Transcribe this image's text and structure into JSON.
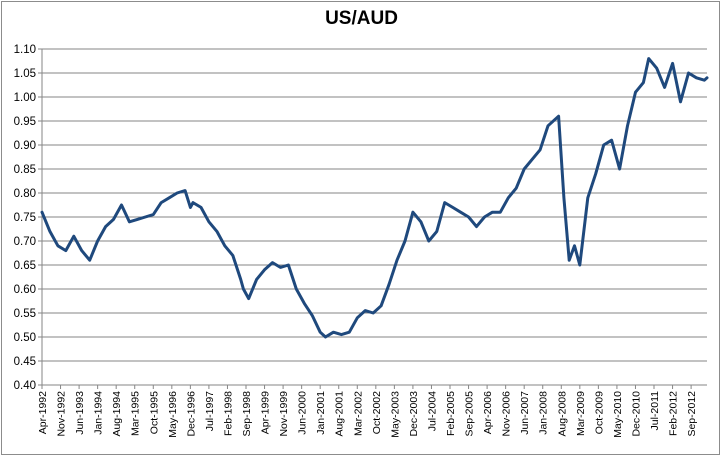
{
  "chart_data": {
    "type": "line",
    "title": "US/AUD",
    "xlabel": "",
    "ylabel": "",
    "ylim": [
      0.4,
      1.1
    ],
    "y_ticks": [
      "0.40",
      "0.45",
      "0.50",
      "0.55",
      "0.60",
      "0.65",
      "0.70",
      "0.75",
      "0.80",
      "0.85",
      "0.90",
      "0.95",
      "1.00",
      "1.05",
      "1.10"
    ],
    "x_range": [
      "1992-04",
      "2013-03"
    ],
    "x_ticks": [
      "Apr-1992",
      "Nov-1992",
      "Jun-1993",
      "Jan-1994",
      "Aug-1994",
      "Mar-1995",
      "Oct-1995",
      "May-1996",
      "Dec-1996",
      "Jul-1997",
      "Feb-1998",
      "Sep-1998",
      "Apr-1999",
      "Nov-1999",
      "Jun-2000",
      "Jan-2001",
      "Aug-2001",
      "Mar-2002",
      "Oct-2002",
      "May-2003",
      "Dec-2003",
      "Jul-2004",
      "Feb-2005",
      "Sep-2005",
      "Apr-2006",
      "Nov-2006",
      "Jun-2007",
      "Jan-2008",
      "Aug-2008",
      "Mar-2009",
      "Oct-2009",
      "May-2010",
      "Dec-2010",
      "Jul-2011",
      "Feb-2012",
      "Sep-2012"
    ],
    "grid": true,
    "legend": "none",
    "line_color": "#1f497d",
    "series": [
      {
        "x": [
          "1992-04",
          "1992-07",
          "1992-10",
          "1993-01",
          "1993-04",
          "1993-07",
          "1993-10",
          "1994-01",
          "1994-04",
          "1994-07",
          "1994-10",
          "1995-01",
          "1995-04",
          "1995-07",
          "1995-10",
          "1996-01",
          "1996-04",
          "1996-07",
          "1996-10",
          "1996-12",
          "1997-01",
          "1997-04",
          "1997-07",
          "1997-10",
          "1998-01",
          "1998-04",
          "1998-07",
          "1998-08",
          "1998-10",
          "1999-01",
          "1999-04",
          "1999-07",
          "1999-10",
          "2000-01",
          "2000-04",
          "2000-07",
          "2000-10",
          "2001-01",
          "2001-03",
          "2001-06",
          "2001-09",
          "2001-12",
          "2002-03",
          "2002-06",
          "2002-09",
          "2002-12",
          "2003-03",
          "2003-06",
          "2003-09",
          "2003-12",
          "2004-03",
          "2004-06",
          "2004-09",
          "2004-12",
          "2005-03",
          "2005-06",
          "2005-09",
          "2005-12",
          "2006-03",
          "2006-06",
          "2006-09",
          "2006-12",
          "2007-03",
          "2007-06",
          "2007-09",
          "2007-12",
          "2008-03",
          "2008-07",
          "2008-09",
          "2008-11",
          "2009-01",
          "2009-03",
          "2009-06",
          "2009-09",
          "2009-12",
          "2010-03",
          "2010-06",
          "2010-09",
          "2010-12",
          "2011-03",
          "2011-05",
          "2011-08",
          "2011-11",
          "2012-02",
          "2012-05",
          "2012-08",
          "2012-11",
          "2013-02",
          "2013-03"
        ],
        "values": [
          0.76,
          0.72,
          0.69,
          0.68,
          0.71,
          0.68,
          0.66,
          0.7,
          0.73,
          0.745,
          0.775,
          0.74,
          0.745,
          0.75,
          0.755,
          0.78,
          0.79,
          0.8,
          0.805,
          0.77,
          0.78,
          0.77,
          0.74,
          0.72,
          0.69,
          0.67,
          0.62,
          0.6,
          0.58,
          0.62,
          0.64,
          0.655,
          0.645,
          0.65,
          0.6,
          0.57,
          0.545,
          0.51,
          0.5,
          0.51,
          0.505,
          0.51,
          0.54,
          0.555,
          0.55,
          0.565,
          0.61,
          0.66,
          0.7,
          0.76,
          0.74,
          0.7,
          0.72,
          0.78,
          0.77,
          0.76,
          0.75,
          0.73,
          0.75,
          0.76,
          0.76,
          0.79,
          0.81,
          0.85,
          0.87,
          0.89,
          0.94,
          0.96,
          0.79,
          0.66,
          0.69,
          0.65,
          0.79,
          0.84,
          0.9,
          0.91,
          0.85,
          0.94,
          1.01,
          1.03,
          1.08,
          1.06,
          1.02,
          1.07,
          0.99,
          1.05,
          1.04,
          1.035,
          1.04
        ]
      }
    ]
  }
}
